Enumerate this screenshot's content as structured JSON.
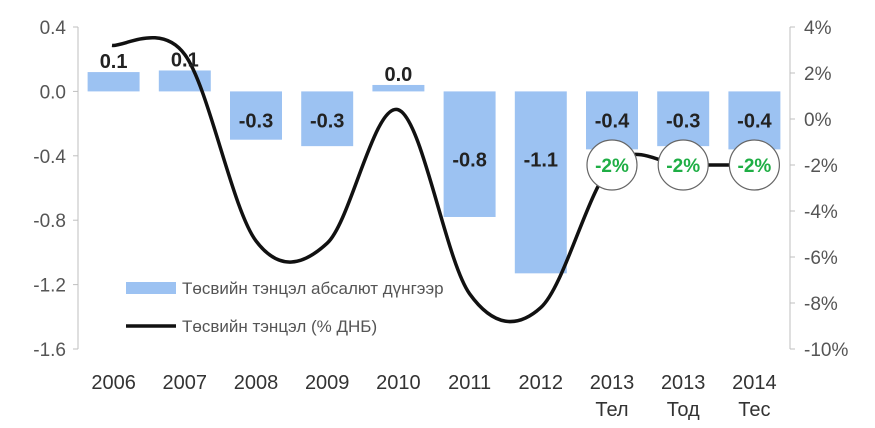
{
  "chart_data": {
    "type": "bar",
    "categories": [
      [
        "2006"
      ],
      [
        "2007"
      ],
      [
        "2008"
      ],
      [
        "2009"
      ],
      [
        "2010"
      ],
      [
        "2011"
      ],
      [
        "2012"
      ],
      [
        "2013",
        "Тел"
      ],
      [
        "2013",
        "Тод"
      ],
      [
        "2014",
        "Тес"
      ]
    ],
    "series": [
      {
        "name": "Төсвийн тэнцэл абсалют дүнгээр",
        "type": "bar",
        "axis": "left",
        "color": "#9cc2f2",
        "values": [
          0.12,
          0.13,
          -0.3,
          -0.34,
          0.04,
          -0.78,
          -1.13,
          -0.36,
          -0.34,
          -0.36
        ],
        "labels": [
          "0.1",
          "0.1",
          "-0.3",
          "-0.3",
          "0.0",
          "-0.8",
          "-1.1",
          "-0.4",
          "-0.3",
          "-0.4"
        ]
      },
      {
        "name": "Төсвийн тэнцэл (% ДНБ)",
        "type": "line",
        "axis": "right",
        "color": "#111111",
        "values": [
          3.2,
          2.8,
          -5.3,
          -5.4,
          0.4,
          -7.6,
          -8.2,
          -2.0,
          -2.0,
          -2.0
        ],
        "labels": [
          "",
          "",
          "",
          "",
          "",
          "",
          "",
          "-2%",
          "-2%",
          "-2%"
        ],
        "label_color": "#1fae45"
      }
    ],
    "y_left": {
      "lim": [
        -1.6,
        0.4
      ],
      "ticks": [
        0.4,
        0.0,
        -0.4,
        -0.8,
        -1.2,
        -1.6
      ],
      "tick_labels": [
        "0.4",
        "0.0",
        "-0.4",
        "-0.8",
        "-1.2",
        "-1.6"
      ]
    },
    "y_right": {
      "lim": [
        -10,
        4
      ],
      "ticks": [
        4,
        2,
        0,
        -2,
        -4,
        -6,
        -8,
        -10
      ],
      "tick_labels": [
        "4%",
        "2%",
        "0%",
        "-2%",
        "-4%",
        "-6%",
        "-8%",
        "-10%"
      ]
    },
    "legend": {
      "position": "bottom-left"
    },
    "grid": false,
    "title": "",
    "xlabel": "",
    "ylabel": ""
  }
}
